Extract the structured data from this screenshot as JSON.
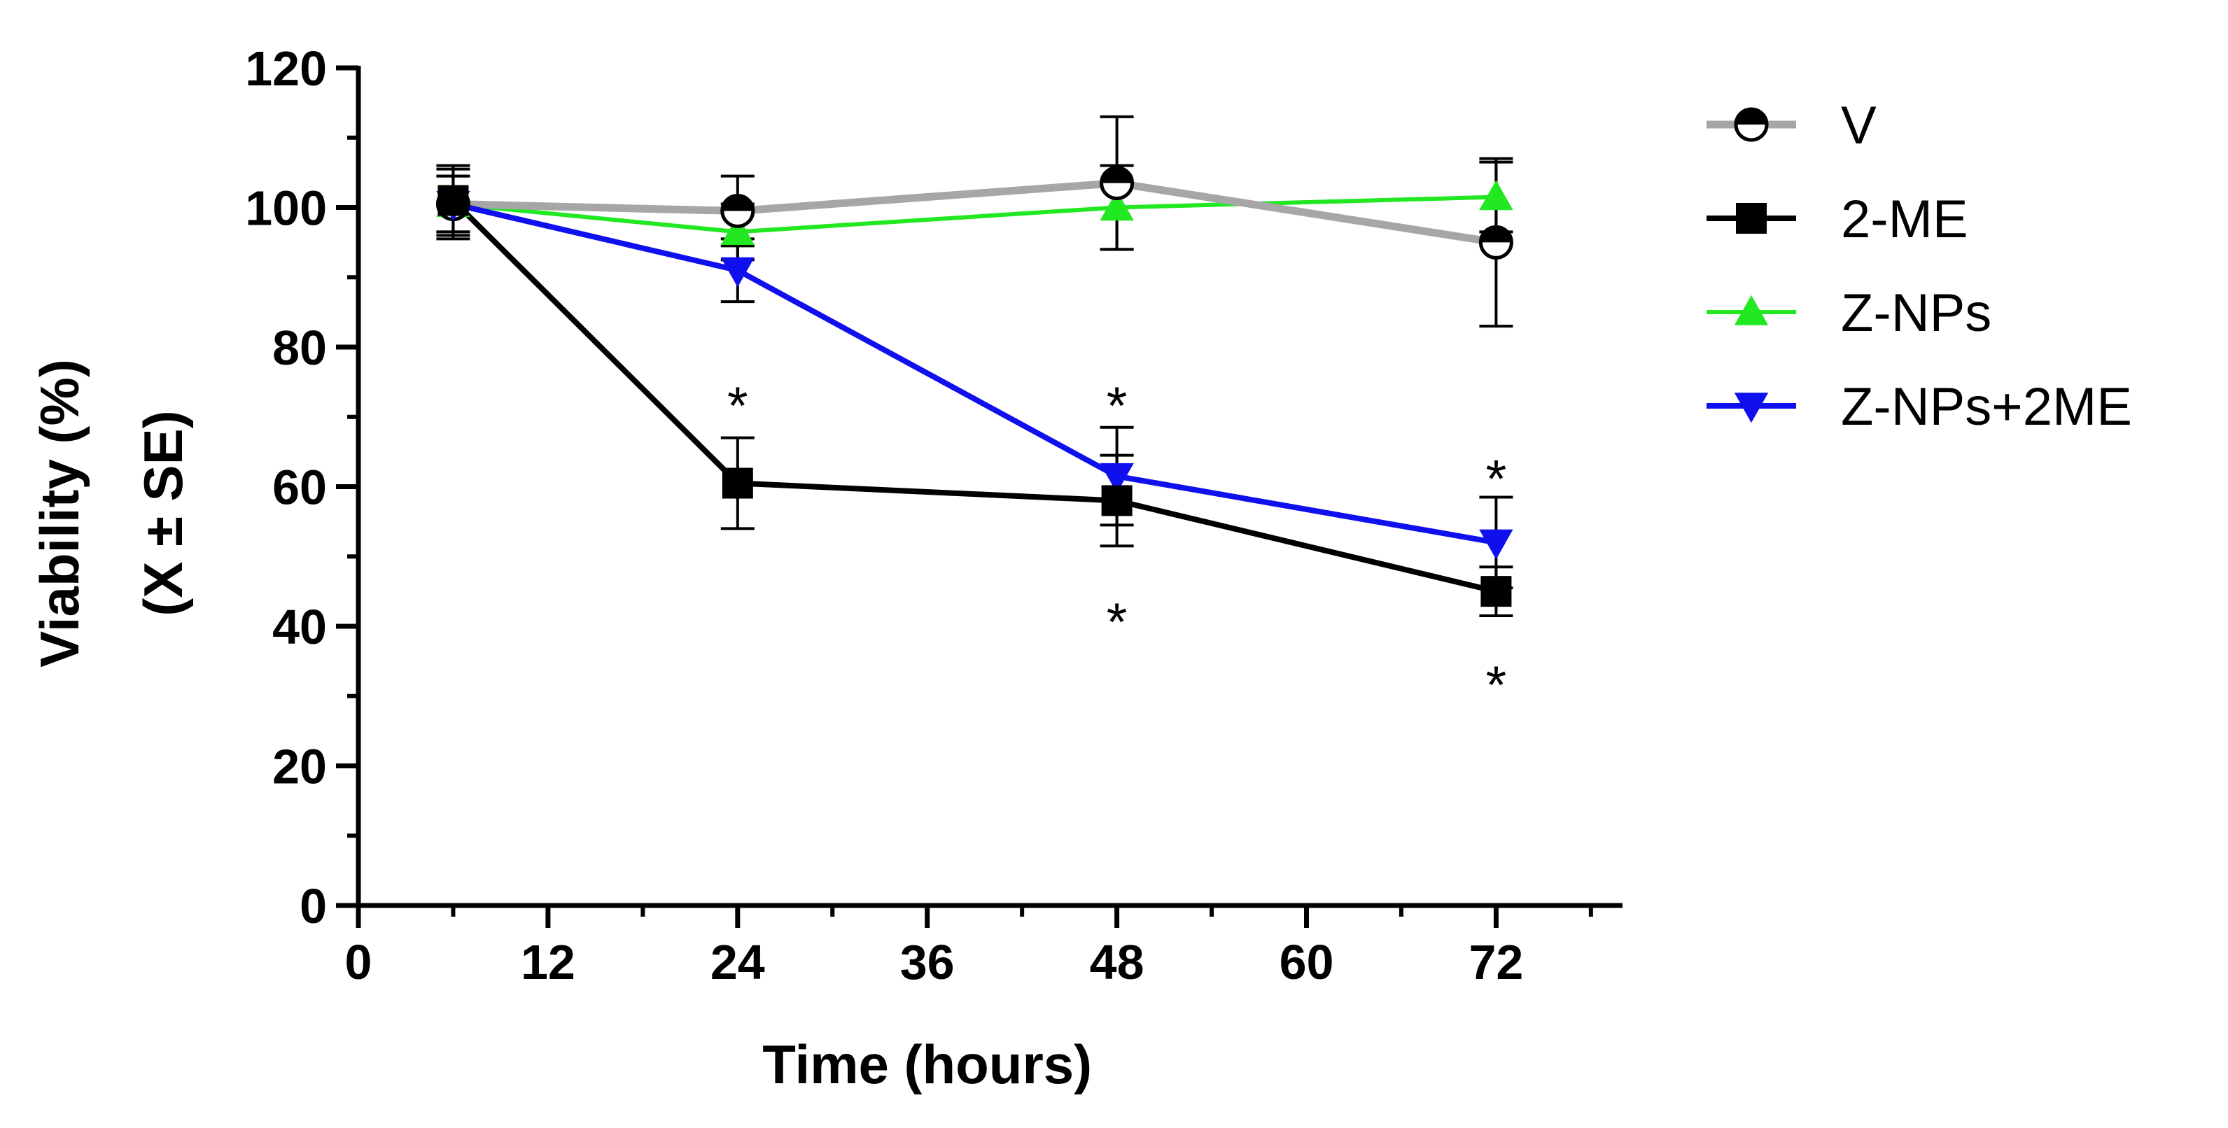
{
  "chart_data": {
    "type": "line",
    "title": "",
    "xlabel": "Time (hours)",
    "ylabel_lines": [
      "Viability (%)",
      "(X ± SE)"
    ],
    "xlim": [
      0,
      80
    ],
    "ylim": [
      0,
      120
    ],
    "xticks": [
      0,
      12,
      24,
      36,
      48,
      60,
      72
    ],
    "yticks": [
      0,
      20,
      40,
      60,
      80,
      100,
      120
    ],
    "x": [
      6,
      24,
      48,
      72
    ],
    "grid": false,
    "legend_position": "right",
    "series": [
      {
        "name": "V",
        "color": "#a6a6a6",
        "marker_color": "#000000",
        "marker": "half-circle",
        "values": [
          100.5,
          99.5,
          103.5,
          95
        ],
        "errors": [
          5,
          5,
          9.5,
          12
        ]
      },
      {
        "name": "2-ME",
        "color": "#000000",
        "marker_color": "#000000",
        "marker": "square",
        "values": [
          101,
          60.5,
          58,
          45
        ],
        "errors": [
          5,
          6.5,
          6.5,
          3.5
        ]
      },
      {
        "name": "Z-NPs",
        "color": "#22e822",
        "marker_color": "#22e822",
        "marker": "triangle-up",
        "values": [
          100.5,
          96.5,
          100,
          101.5
        ],
        "errors": [
          4,
          4,
          6,
          5
        ]
      },
      {
        "name": "Z-NPs+2ME",
        "color": "#1010ee",
        "marker_color": "#1010ee",
        "marker": "triangle-down",
        "values": [
          100.5,
          91,
          61.5,
          52
        ],
        "errors": [
          4,
          4.5,
          7,
          6.5
        ]
      }
    ],
    "annotations": [
      {
        "text": "*",
        "x": 24,
        "y": 73
      },
      {
        "text": "*",
        "x": 48,
        "y": 73
      },
      {
        "text": "*",
        "x": 48,
        "y": 42
      },
      {
        "text": "*",
        "x": 72,
        "y": 62.5
      },
      {
        "text": "*",
        "x": 72,
        "y": 33
      }
    ]
  }
}
